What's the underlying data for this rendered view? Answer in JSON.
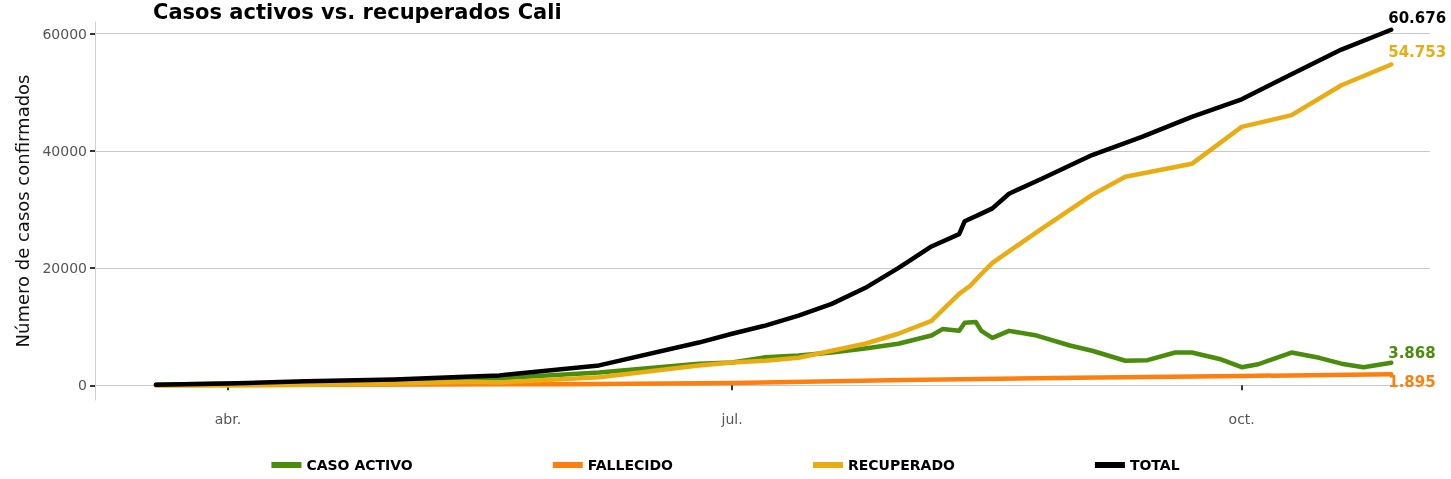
{
  "chart_data": {
    "type": "line",
    "title": "Casos activos vs. recuperados Cali",
    "ylabel": "Número de casos confirmados",
    "xlim": [
      "--03-08",
      "--11-04"
    ],
    "xticks": [
      {
        "value": "--04-01",
        "label": "abr."
      },
      {
        "value": "--07-01",
        "label": "jul."
      },
      {
        "value": "--10-01",
        "label": "oct."
      }
    ],
    "ylim": [
      -2500,
      62000
    ],
    "yticks": [
      0,
      20000,
      40000,
      60000
    ],
    "grid": "y",
    "legend": "bottom",
    "marker": "none",
    "line_style": "solid",
    "series": [
      {
        "name": "CASO ACTIVO",
        "color": "#4a8c0c",
        "x": [
          "--03-19",
          "--04-01",
          "--04-15",
          "--05-01",
          "--05-15",
          "--05-20",
          "--06-07",
          "--06-25",
          "--07-01",
          "--07-07",
          "--07-13",
          "--07-19",
          "--07-25",
          "--07-31",
          "--08-06",
          "--08-08",
          "--08-11",
          "--08-12",
          "--08-14",
          "--08-15",
          "--08-17",
          "--08-20",
          "--08-25",
          "--08-31",
          "--09-04",
          "--09-10",
          "--09-14",
          "--09-19",
          "--09-22",
          "--09-27",
          "--10-01",
          "--10-04",
          "--10-10",
          "--10-15",
          "--10-19",
          "--10-23",
          "--10-28"
        ],
        "values": [
          100,
          300,
          500,
          700,
          1000,
          1200,
          2200,
          3700,
          3900,
          4800,
          5100,
          5600,
          6300,
          7100,
          8500,
          9600,
          9300,
          10700,
          10800,
          9300,
          8100,
          9300,
          8500,
          6800,
          5900,
          4200,
          4300,
          5600,
          5600,
          4500,
          3100,
          3600,
          5600,
          4700,
          3700,
          3100,
          3868
        ],
        "value_labels": [
          null,
          null,
          null,
          null,
          null,
          null,
          null,
          null,
          null,
          null,
          null,
          null,
          null,
          null,
          null,
          null,
          null,
          null,
          null,
          null,
          null,
          null,
          null,
          null,
          null,
          null,
          null,
          null,
          null,
          null,
          null,
          null,
          null,
          null,
          null,
          null,
          "3.868"
        ]
      },
      {
        "name": "FALLECIDO",
        "color": "#ff7f0e",
        "x": [
          "--03-19",
          "--06-01",
          "--07-01",
          "--08-01",
          "--09-01",
          "--10-01",
          "--10-28"
        ],
        "values": [
          0,
          200,
          400,
          900,
          1300,
          1600,
          1895
        ],
        "value_labels": [
          null,
          null,
          null,
          null,
          null,
          null,
          "1.895"
        ]
      },
      {
        "name": "RECUPERADO",
        "color": "#e9ac12",
        "x": [
          "--03-19",
          "--04-01",
          "--04-15",
          "--05-01",
          "--05-15",
          "--05-20",
          "--06-07",
          "--06-25",
          "--07-01",
          "--07-07",
          "--07-13",
          "--07-19",
          "--07-25",
          "--07-31",
          "--08-06",
          "--08-11",
          "--08-13",
          "--08-15",
          "--08-17",
          "--08-26",
          "--09-04",
          "--09-10",
          "--09-22",
          "--10-01",
          "--10-10",
          "--10-19",
          "--10-28"
        ],
        "values": [
          0,
          0,
          100,
          300,
          600,
          500,
          1400,
          3400,
          3900,
          4200,
          4700,
          5900,
          7100,
          8800,
          11000,
          15600,
          17000,
          19000,
          20900,
          26800,
          32500,
          35600,
          37800,
          44100,
          46100,
          51200,
          54753
        ],
        "value_labels": [
          null,
          null,
          null,
          null,
          null,
          null,
          null,
          null,
          null,
          null,
          null,
          null,
          null,
          null,
          null,
          null,
          null,
          null,
          null,
          null,
          null,
          null,
          null,
          null,
          null,
          null,
          "54.753"
        ]
      },
      {
        "name": "TOTAL",
        "color": "#000000",
        "x": [
          "--03-19",
          "--04-01",
          "--04-15",
          "--05-01",
          "--05-15",
          "--05-20",
          "--06-07",
          "--06-25",
          "--07-01",
          "--07-07",
          "--07-13",
          "--07-19",
          "--07-25",
          "--07-31",
          "--08-06",
          "--08-11",
          "--08-12",
          "--08-15",
          "--08-17",
          "--08-20",
          "--08-26",
          "--09-04",
          "--09-13",
          "--09-22",
          "--10-01",
          "--10-10",
          "--10-19",
          "--10-28"
        ],
        "values": [
          100,
          300,
          700,
          1000,
          1500,
          1700,
          3400,
          7300,
          8800,
          10200,
          11900,
          13900,
          16600,
          20000,
          23700,
          25800,
          28000,
          29300,
          30200,
          32700,
          35300,
          39300,
          42400,
          45800,
          48800,
          53100,
          57300,
          60676
        ],
        "value_labels": [
          null,
          null,
          null,
          null,
          null,
          null,
          null,
          null,
          null,
          null,
          null,
          null,
          null,
          null,
          null,
          null,
          null,
          null,
          null,
          null,
          null,
          null,
          null,
          null,
          null,
          null,
          null,
          "60.676"
        ]
      }
    ]
  }
}
